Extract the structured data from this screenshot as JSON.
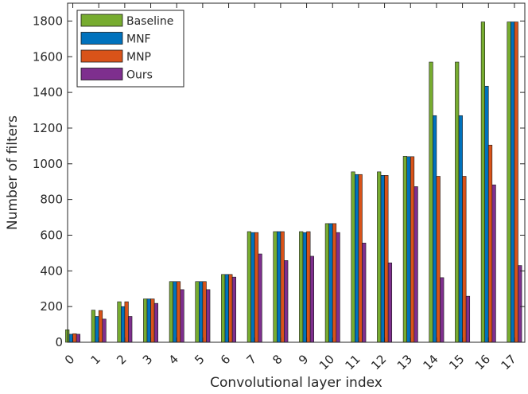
{
  "chart_data": {
    "type": "bar",
    "xlabel": "Convolutional layer index",
    "ylabel": "Number of filters",
    "categories": [
      "0",
      "1",
      "2",
      "3",
      "4",
      "5",
      "6",
      "7",
      "8",
      "9",
      "10",
      "11",
      "12",
      "13",
      "14",
      "15",
      "16",
      "17"
    ],
    "ylim": [
      0,
      1900
    ],
    "yticks": [
      0,
      200,
      400,
      600,
      800,
      1000,
      1200,
      1400,
      1600,
      1800
    ],
    "grid": false,
    "legend_position": "top-left",
    "series": [
      {
        "name": "Baseline",
        "color": "#77AC30",
        "values": [
          70,
          180,
          227,
          243,
          340,
          340,
          380,
          620,
          620,
          620,
          665,
          955,
          955,
          1042,
          1570,
          1570,
          1795,
          1795
        ]
      },
      {
        "name": "MNF",
        "color": "#0072BD",
        "values": [
          45,
          145,
          200,
          243,
          340,
          340,
          380,
          615,
          620,
          615,
          665,
          940,
          935,
          1040,
          1270,
          1270,
          1435,
          1795
        ]
      },
      {
        "name": "MNP",
        "color": "#D95319",
        "values": [
          48,
          178,
          227,
          243,
          340,
          340,
          380,
          615,
          620,
          620,
          665,
          940,
          935,
          1040,
          930,
          930,
          1105,
          1795
        ]
      },
      {
        "name": "Ours",
        "color": "#7E2F8E",
        "values": [
          45,
          130,
          145,
          218,
          295,
          295,
          365,
          495,
          458,
          482,
          615,
          556,
          445,
          872,
          362,
          258,
          882,
          430
        ]
      }
    ]
  }
}
